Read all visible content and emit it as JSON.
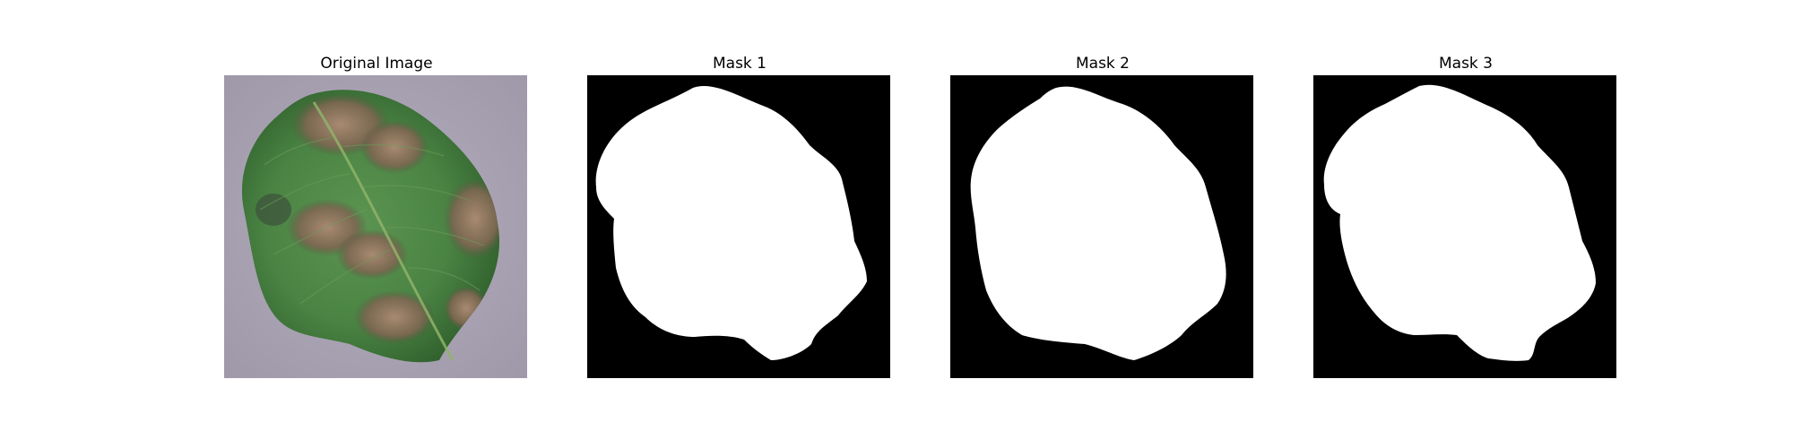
{
  "figure": {
    "panels": [
      {
        "title": "Original Image"
      },
      {
        "title": "Mask 1"
      },
      {
        "title": "Mask 2"
      },
      {
        "title": "Mask 3"
      }
    ]
  },
  "colors": {
    "background": "#ffffff",
    "mask_background": "#000000",
    "mask_foreground": "#ffffff",
    "photo_background": "#aaa4b4",
    "leaf_green": "#4f8a48",
    "leaf_dark_green": "#2e5b2c",
    "blight_brown": "#8a6a55"
  }
}
